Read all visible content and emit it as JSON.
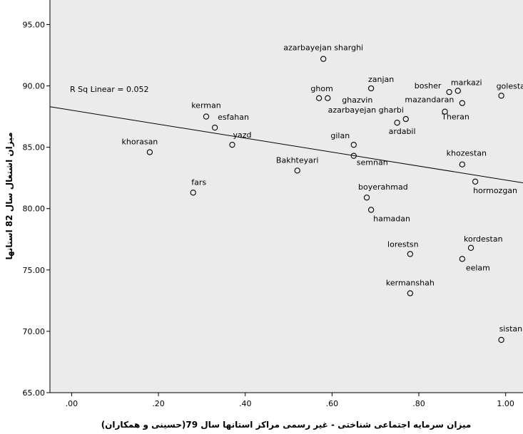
{
  "chart_data": {
    "type": "scatter",
    "xlabel": "میزان سرمایه اجتماعی شناختی - غیر رسمی مراکز استانها سال 79(حسینی و همکاران)",
    "ylabel": "میزان اشتغال سال 82 استانها",
    "xlim": [
      -0.05,
      1.04
    ],
    "ylim": [
      65.0,
      97.0
    ],
    "x_ticks": [
      0.0,
      0.2,
      0.4,
      0.6,
      0.8,
      1.0
    ],
    "x_tick_labels": [
      ".00",
      ".20",
      ".40",
      ".60",
      ".80",
      "1.00"
    ],
    "y_ticks": [
      65.0,
      70.0,
      75.0,
      80.0,
      85.0,
      90.0,
      95.0
    ],
    "y_tick_labels": [
      "65.00",
      "70.00",
      "75.00",
      "80.00",
      "85.00",
      "90.00",
      "95.00"
    ],
    "grid": false,
    "annotation": "R Sq Linear = 0.052",
    "fit_line": {
      "x": [
        -0.05,
        1.04
      ],
      "y": [
        88.3,
        82.1
      ]
    },
    "points": [
      {
        "label": "azarbayejan sharghi",
        "x": 0.58,
        "y": 92.2
      },
      {
        "label": "zanjan",
        "x": 0.69,
        "y": 89.8
      },
      {
        "label": "bosher",
        "x": 0.87,
        "y": 89.5
      },
      {
        "label": "markazi",
        "x": 0.89,
        "y": 89.6
      },
      {
        "label": "golestan",
        "x": 0.99,
        "y": 89.2
      },
      {
        "label": "ghom",
        "x": 0.57,
        "y": 89.0
      },
      {
        "label": "ghazvin",
        "x": 0.59,
        "y": 89.0
      },
      {
        "label": "mazandaran",
        "x": 0.9,
        "y": 88.6
      },
      {
        "label": "Theran",
        "x": 0.86,
        "y": 87.9
      },
      {
        "label": "azarbayejan gharbi",
        "x": 0.77,
        "y": 87.3
      },
      {
        "label": "ardabil",
        "x": 0.75,
        "y": 87.0
      },
      {
        "label": "kerman",
        "x": 0.31,
        "y": 87.5
      },
      {
        "label": "esfahan",
        "x": 0.33,
        "y": 86.6
      },
      {
        "label": "yazd",
        "x": 0.37,
        "y": 85.2
      },
      {
        "label": "khorasan",
        "x": 0.18,
        "y": 84.6
      },
      {
        "label": "gilan",
        "x": 0.65,
        "y": 85.2
      },
      {
        "label": "semnan",
        "x": 0.65,
        "y": 84.3
      },
      {
        "label": "Bakhteyari",
        "x": 0.52,
        "y": 83.1
      },
      {
        "label": "khozestan",
        "x": 0.9,
        "y": 83.6
      },
      {
        "label": "hormozgan",
        "x": 0.93,
        "y": 82.2
      },
      {
        "label": "fars",
        "x": 0.28,
        "y": 81.3
      },
      {
        "label": "boyerahmad",
        "x": 0.68,
        "y": 80.9
      },
      {
        "label": "hamadan",
        "x": 0.69,
        "y": 79.9
      },
      {
        "label": "lorestsn",
        "x": 0.78,
        "y": 76.3
      },
      {
        "label": "kordestan",
        "x": 0.92,
        "y": 76.8
      },
      {
        "label": "eelam",
        "x": 0.9,
        "y": 75.9
      },
      {
        "label": "kermanshah",
        "x": 0.78,
        "y": 73.1
      },
      {
        "label": "sistan",
        "x": 0.99,
        "y": 69.3
      }
    ]
  }
}
